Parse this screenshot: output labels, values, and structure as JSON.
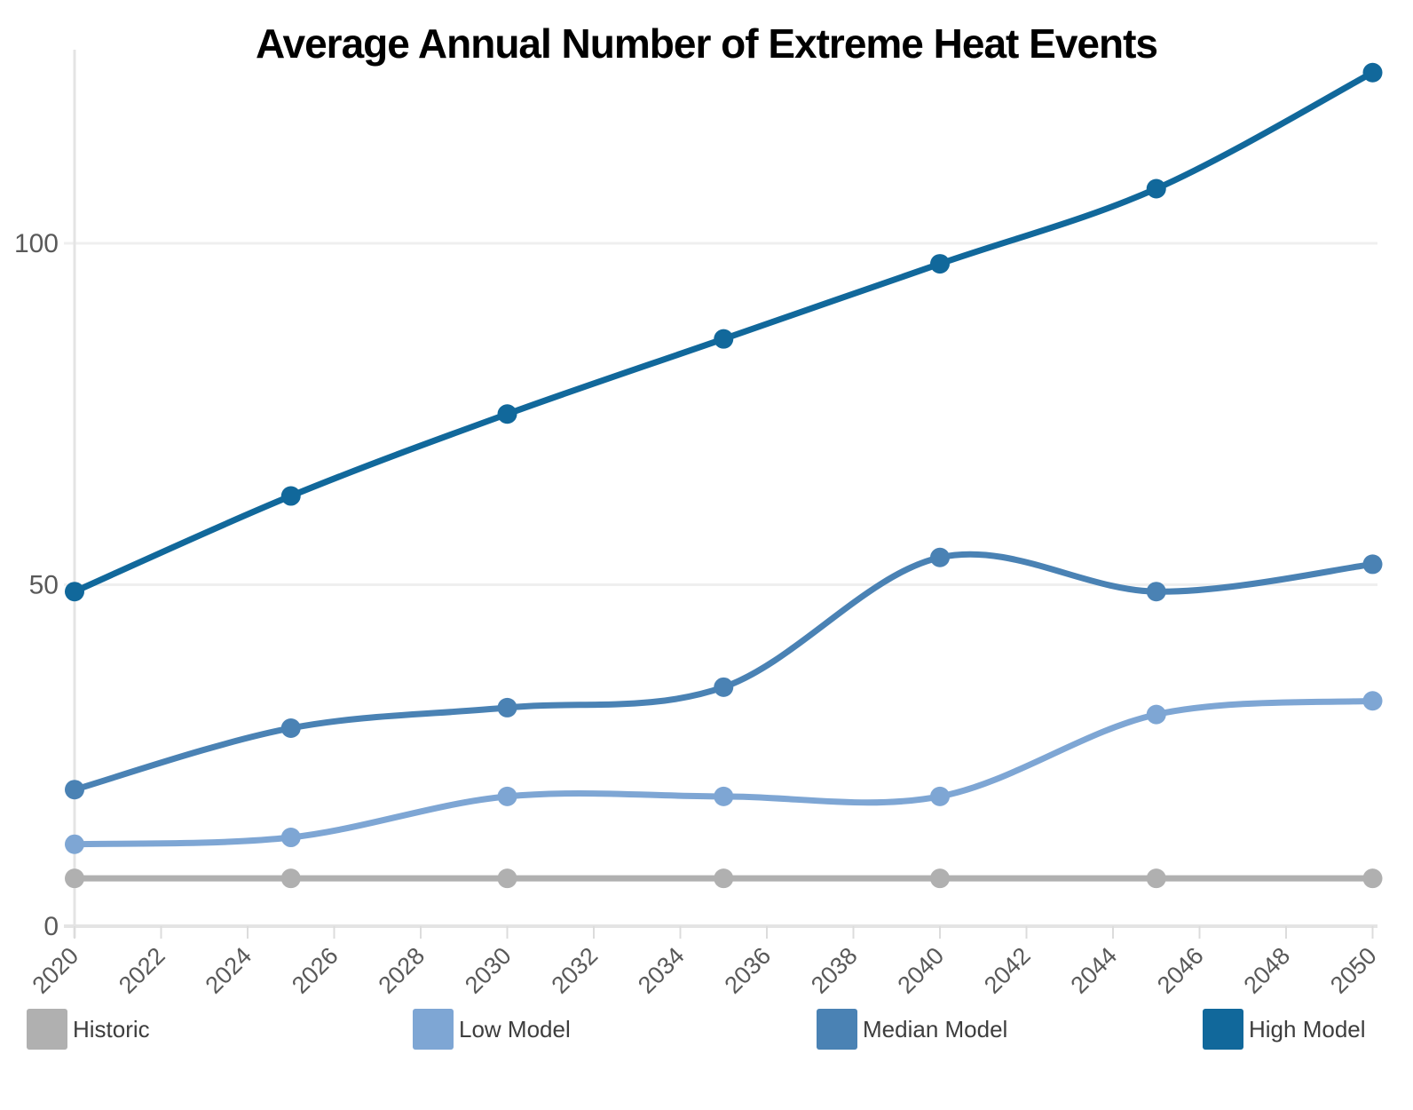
{
  "chart_data": {
    "type": "line",
    "title": "Average Annual Number of Extreme Heat Events",
    "x": [
      2020,
      2025,
      2030,
      2035,
      2040,
      2045,
      2050
    ],
    "series": [
      {
        "name": "Historic",
        "color": "#b0b0b0",
        "values": [
          7,
          7,
          7,
          7,
          7,
          7,
          7
        ]
      },
      {
        "name": "Low Model",
        "color": "#7ea6d4",
        "values": [
          12,
          13,
          19,
          19,
          19,
          31,
          33
        ]
      },
      {
        "name": "Median Model",
        "color": "#4a82b4",
        "values": [
          20,
          29,
          32,
          35,
          54,
          49,
          53
        ]
      },
      {
        "name": "High Model",
        "color": "#11689b",
        "values": [
          49,
          63,
          75,
          86,
          97,
          108,
          125
        ]
      }
    ],
    "xlabel": "",
    "ylabel": "",
    "xlim": [
      2020,
      2050
    ],
    "ylim": [
      0,
      130
    ],
    "x_tick_labels": [
      "2020",
      "2022",
      "2024",
      "2026",
      "2028",
      "2030",
      "2032",
      "2034",
      "2036",
      "2038",
      "2040",
      "2042",
      "2044",
      "2046",
      "2048",
      "2050"
    ],
    "y_tick_labels": [
      "0",
      "50",
      "100"
    ],
    "y_tick_values": [
      0,
      50,
      100
    ],
    "grid": "horizontal",
    "legend_position": "bottom",
    "marker": "circle",
    "curve": "smooth",
    "colors": {
      "grid_line": "#efefef",
      "axis_line": "#e4e4e4",
      "tick_mark": "#dcdcdc",
      "tick_label": "#595959",
      "title": "#000000",
      "legend_label": "#3d3d3d",
      "background": "#ffffff"
    }
  }
}
